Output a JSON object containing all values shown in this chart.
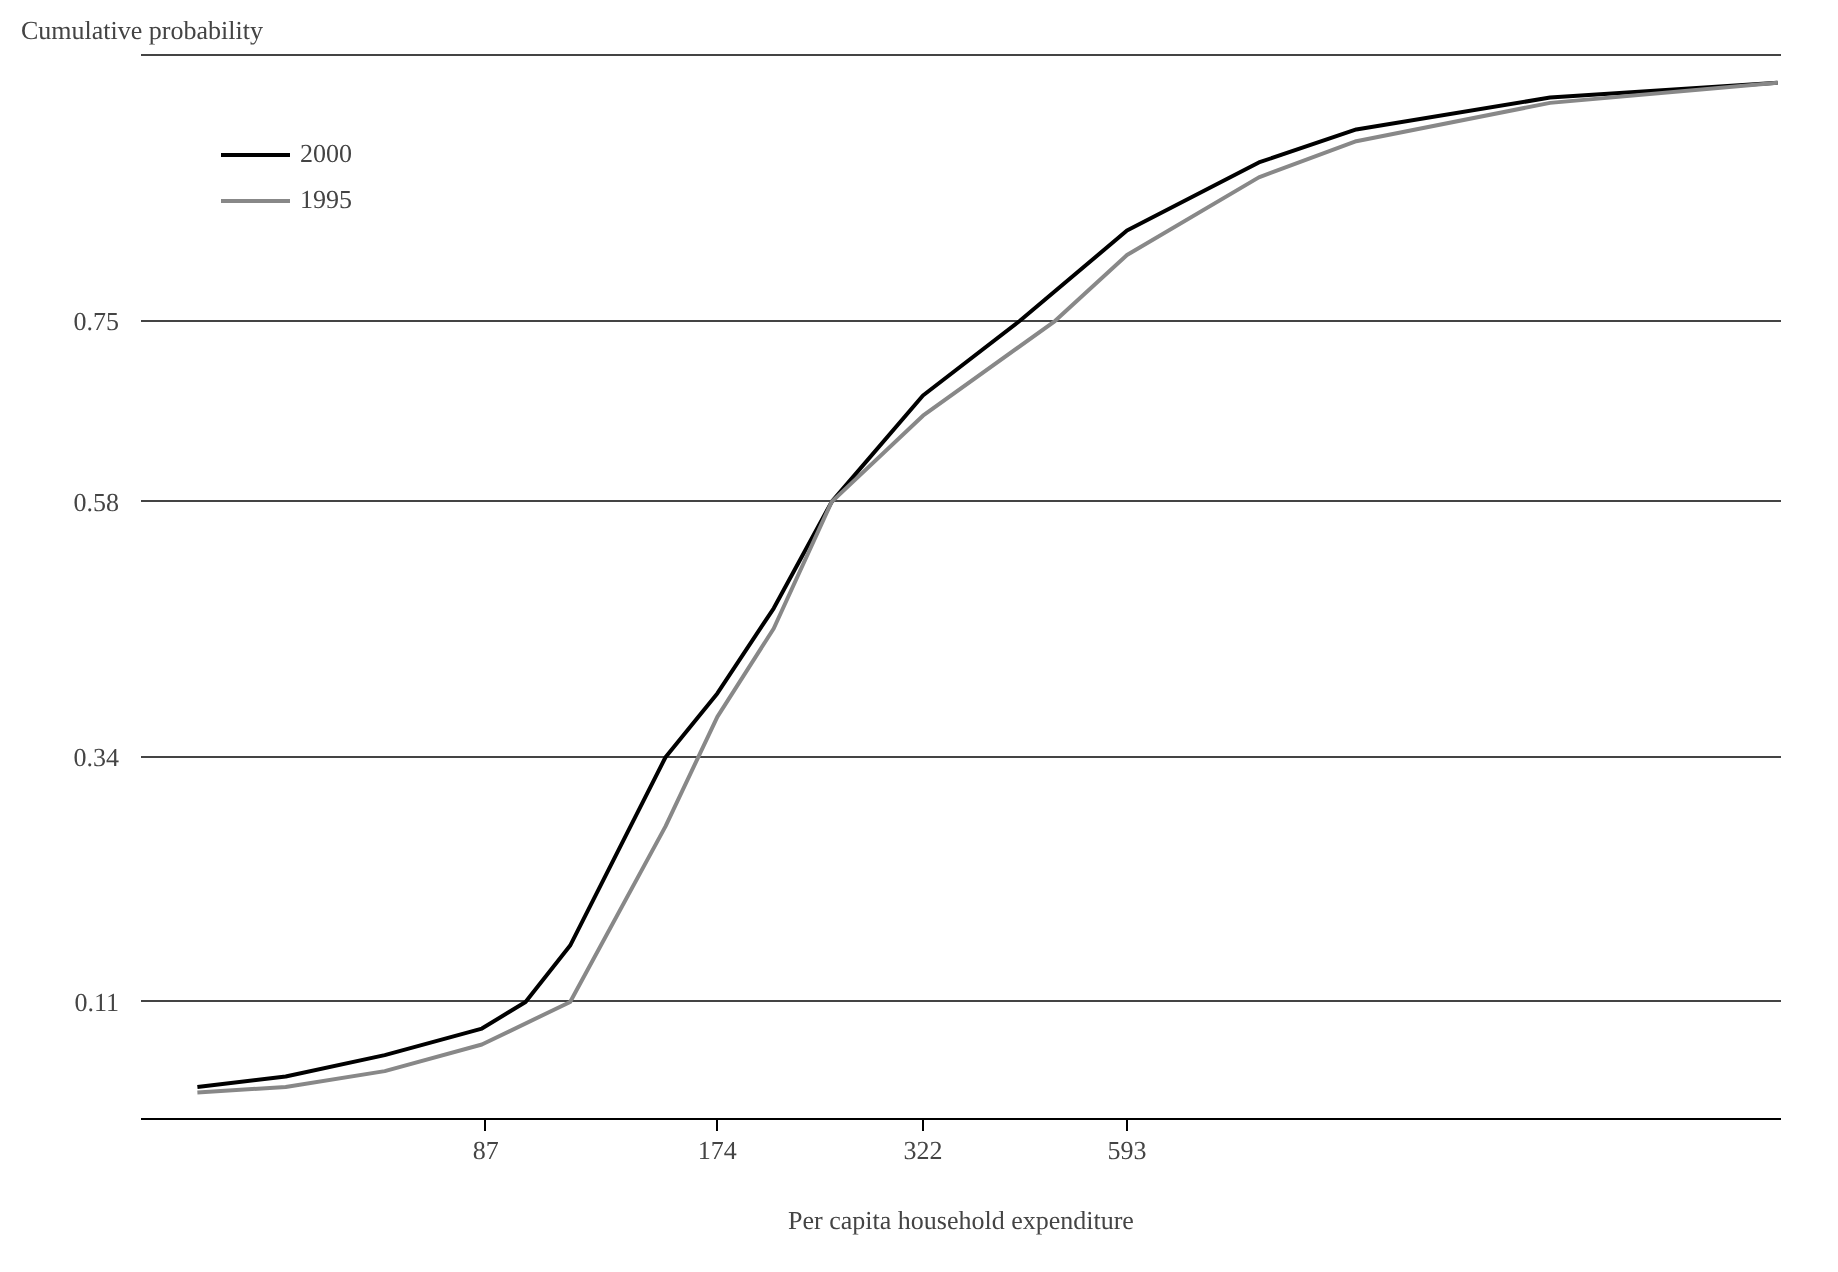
{
  "chart_data": {
    "type": "line",
    "ylabel": "Cumulative probability",
    "xlabel": "Per capita household expenditure",
    "log": "x",
    "xlim": [
      31,
      4200
    ],
    "ylim": [
      0,
      1.0
    ],
    "xticks": [
      87,
      174,
      322,
      593
    ],
    "yticks": [
      0.11,
      0.34,
      0.58,
      0.75
    ],
    "grid": "y",
    "legend": "top left",
    "marker": "none",
    "line_style": "solid",
    "series": [
      {
        "name": "2000",
        "color": "#000000",
        "x": [
          36.7,
          47.8,
          64.3,
          86,
          98,
          112,
          149,
          174,
          206,
          245,
          322,
          430,
          593,
          880,
          1178,
          2104,
          4157
        ],
        "values": [
          0.03,
          0.04,
          0.06,
          0.085,
          0.11,
          0.163,
          0.34,
          0.4,
          0.48,
          0.58,
          0.68,
          0.75,
          0.835,
          0.899,
          0.93,
          0.96,
          0.974
        ]
      },
      {
        "name": "1995",
        "color": "#888888",
        "x": [
          36.7,
          47.8,
          64.3,
          86,
          112,
          149,
          174,
          206,
          245,
          322,
          478,
          593,
          880,
          1178,
          2104,
          4157
        ],
        "values": [
          0.025,
          0.03,
          0.045,
          0.07,
          0.11,
          0.275,
          0.378,
          0.461,
          0.58,
          0.661,
          0.75,
          0.812,
          0.885,
          0.919,
          0.955,
          0.974
        ]
      }
    ]
  }
}
